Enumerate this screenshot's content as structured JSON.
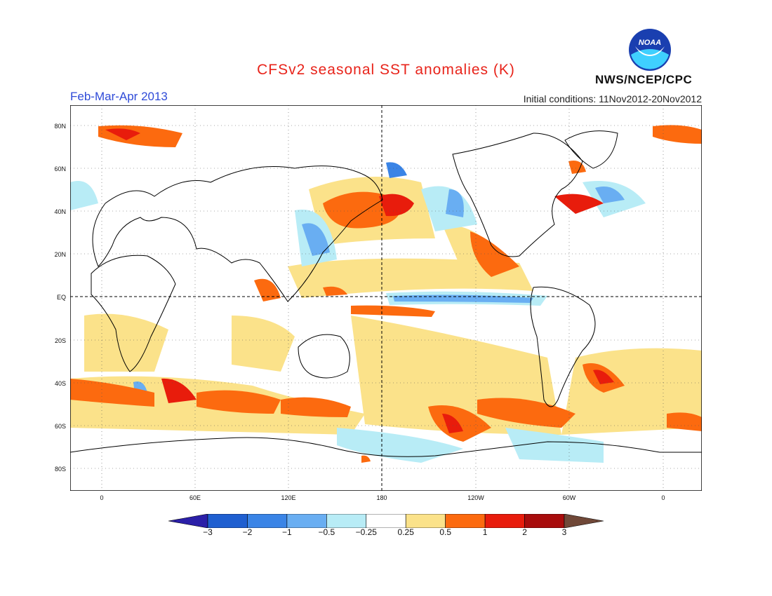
{
  "title": "CFSv2 seasonal SST anomalies (K)",
  "period": "Feb-Mar-Apr 2013",
  "initial_conditions": "Initial conditions: 11Nov2012-20Nov2012",
  "organization": "NWS/NCEP/CPC",
  "logo_text": "NOAA",
  "map": {
    "lat_labels": [
      "80N",
      "60N",
      "40N",
      "20N",
      "EQ",
      "20S",
      "40S",
      "60S",
      "80S"
    ],
    "lon_labels": [
      "0",
      "60E",
      "120E",
      "180",
      "120W",
      "60W",
      "0"
    ],
    "reference_lines": [
      "EQ",
      "180"
    ]
  },
  "legend": {
    "labels": [
      "-3",
      "-2",
      "-1",
      "-0.5",
      "-0.25",
      "0.25",
      "0.5",
      "1",
      "2",
      "3"
    ],
    "colors": [
      "#2b1fa8",
      "#1f5fd0",
      "#3a84e6",
      "#69aef2",
      "#b8ecf6",
      "#ffffff",
      "#fbe28a",
      "#fc6a0f",
      "#e81c0c",
      "#a80c0c",
      "#704838"
    ]
  },
  "colors": {
    "title": "#e8231a",
    "period": "#2f4bd8"
  }
}
